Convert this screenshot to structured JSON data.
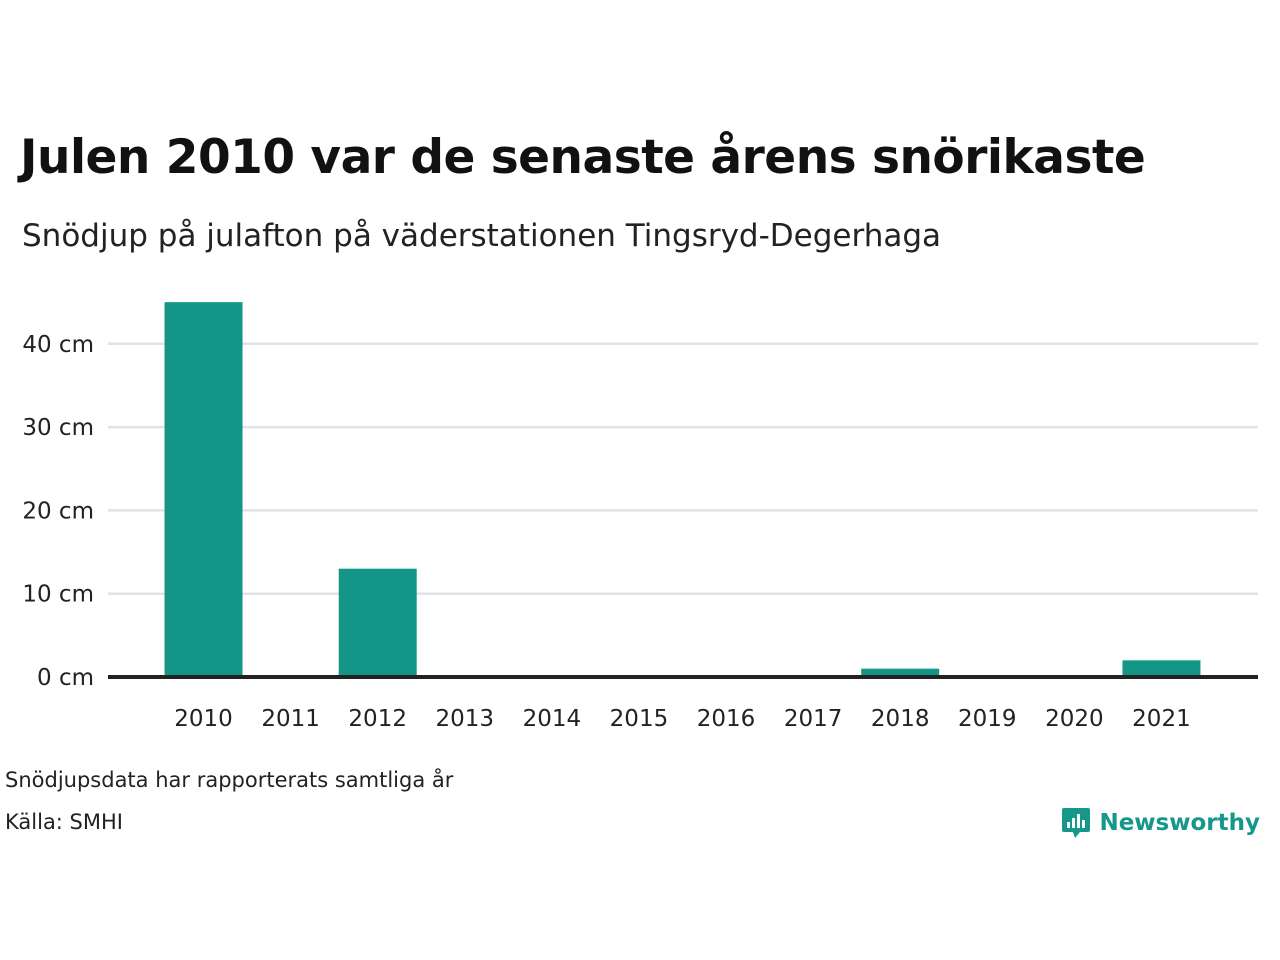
{
  "header": {
    "title": "Julen 2010 var de senaste årens snörikaste",
    "subtitle": "Snödjup på julafton på väderstationen Tingsryd-Degerhaga"
  },
  "footer": {
    "note": "Snödjupsdata har rapporterats samtliga år",
    "source": "Källa: SMHI",
    "brand": "Newsworthy",
    "brand_icon": "newsworthy-logo-icon"
  },
  "colors": {
    "bar": "#139688",
    "grid": "#e2e2e8",
    "baseline": "#222222",
    "brand": "#15978a"
  },
  "chart_data": {
    "type": "bar",
    "title": "Julen 2010 var de senaste årens snörikaste",
    "subtitle": "Snödjup på julafton på väderstationen Tingsryd-Degerhaga",
    "categories": [
      "2010",
      "2011",
      "2012",
      "2013",
      "2014",
      "2015",
      "2016",
      "2017",
      "2018",
      "2019",
      "2020",
      "2021"
    ],
    "values": [
      45,
      0,
      13,
      0,
      0,
      0,
      0,
      0,
      1,
      0,
      0,
      2
    ],
    "unit": "cm",
    "ylim": [
      0,
      47.5
    ],
    "yticks": [
      0,
      10,
      20,
      30,
      40
    ],
    "ytick_labels": [
      "0 cm",
      "10 cm",
      "20 cm",
      "30 cm",
      "40 cm"
    ],
    "xlabel": "",
    "ylabel": "",
    "grid": true,
    "legend": "none"
  }
}
